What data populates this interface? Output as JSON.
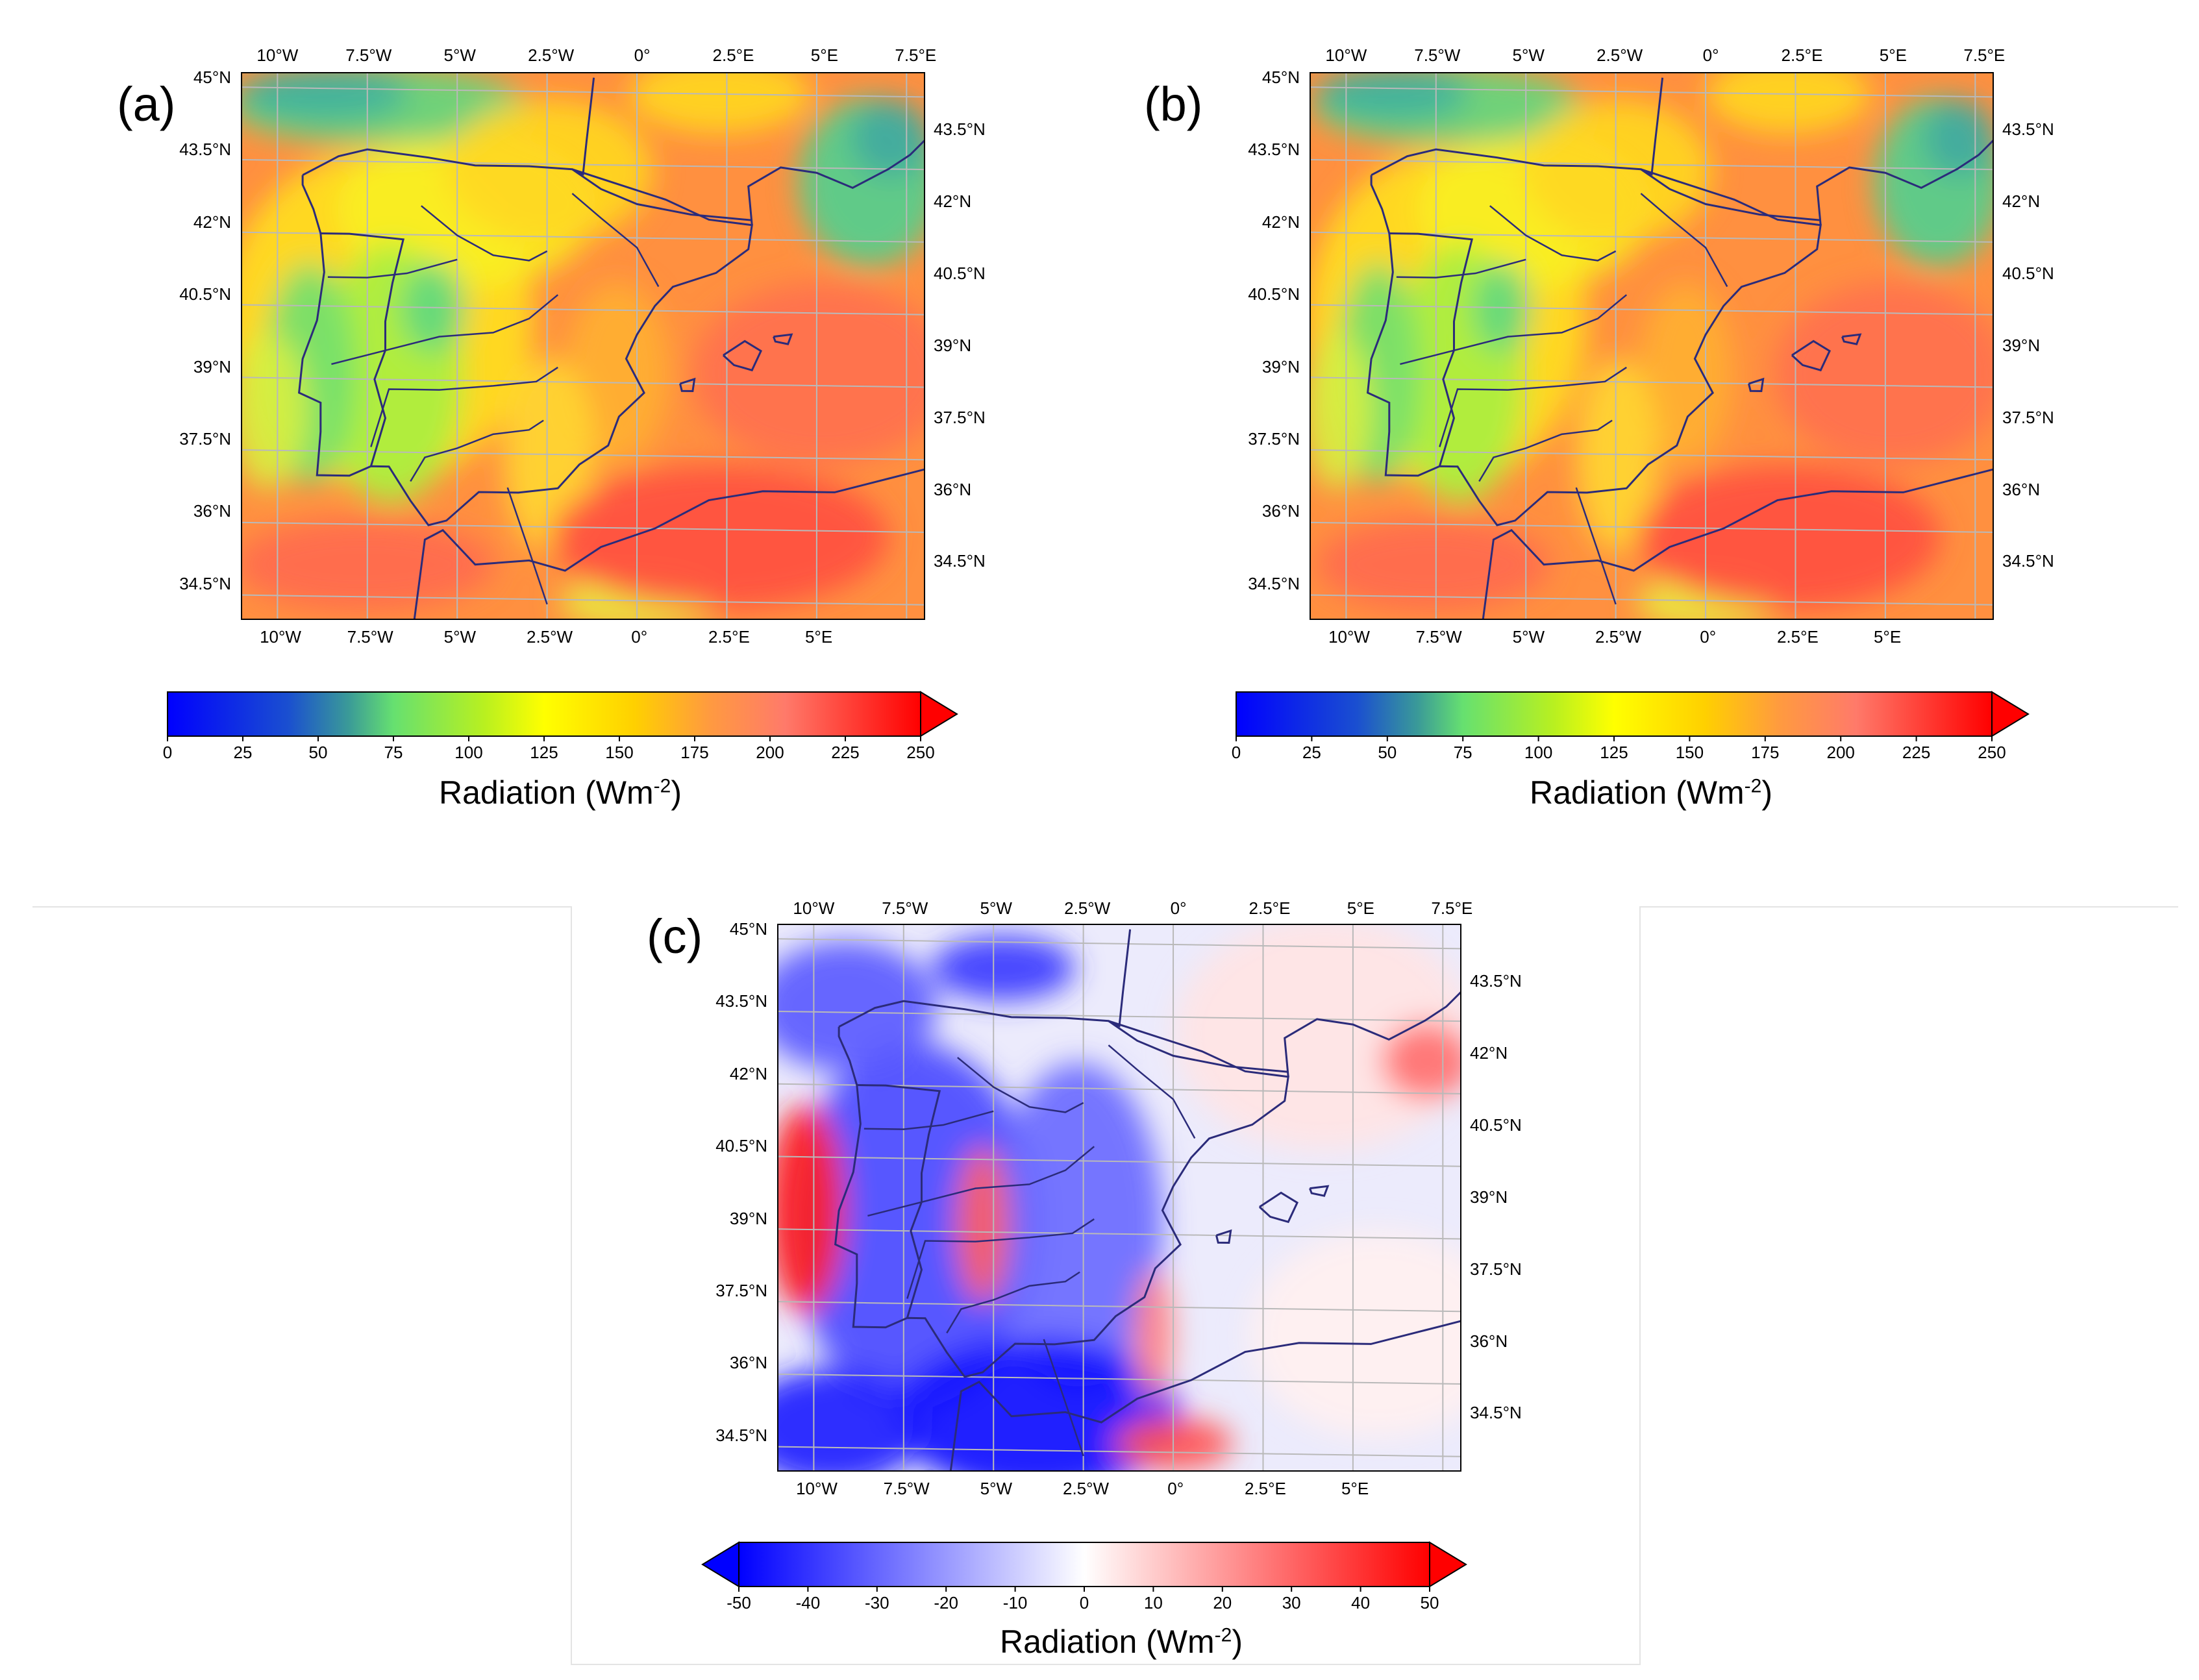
{
  "figure": {
    "panels": [
      {
        "id": "a",
        "label": "(a)",
        "top_lon": [
          "10°W",
          "7.5°W",
          "5°W",
          "2.5°W",
          "0°",
          "2.5°E",
          "5°E",
          "7.5°E"
        ],
        "bottom_lon": [
          "10°W",
          "7.5°W",
          "5°W",
          "2.5°W",
          "0°",
          "2.5°E",
          "5°E"
        ],
        "left_lat": [
          "45°N",
          "43.5°N",
          "42°N",
          "40.5°N",
          "39°N",
          "37.5°N",
          "36°N",
          "34.5°N"
        ],
        "right_lat": [
          "43.5°N",
          "42°N",
          "40.5°N",
          "39°N",
          "37.5°N",
          "36°N",
          "34.5°N"
        ],
        "colormap": "jet-like",
        "colorbar": {
          "title": "Radiation (Wm",
          "title_sup": "-2",
          "title_close": ")",
          "ticks": [
            "0",
            "25",
            "50",
            "75",
            "100",
            "125",
            "150",
            "175",
            "200",
            "225",
            "250"
          ],
          "range": [
            0,
            250
          ],
          "extend": "max"
        }
      },
      {
        "id": "b",
        "label": "(b)",
        "top_lon": [
          "10°W",
          "7.5°W",
          "5°W",
          "2.5°W",
          "0°",
          "2.5°E",
          "5°E",
          "7.5°E"
        ],
        "bottom_lon": [
          "10°W",
          "7.5°W",
          "5°W",
          "2.5°W",
          "0°",
          "2.5°E",
          "5°E"
        ],
        "left_lat": [
          "45°N",
          "43.5°N",
          "42°N",
          "40.5°N",
          "39°N",
          "37.5°N",
          "36°N",
          "34.5°N"
        ],
        "right_lat": [
          "43.5°N",
          "42°N",
          "40.5°N",
          "39°N",
          "37.5°N",
          "36°N",
          "34.5°N"
        ],
        "colormap": "jet-like",
        "colorbar": {
          "title": "Radiation (Wm",
          "title_sup": "-2",
          "title_close": ")",
          "ticks": [
            "0",
            "25",
            "50",
            "75",
            "100",
            "125",
            "150",
            "175",
            "200",
            "225",
            "250"
          ],
          "range": [
            0,
            250
          ],
          "extend": "max"
        }
      },
      {
        "id": "c",
        "label": "(c)",
        "top_lon": [
          "10°W",
          "7.5°W",
          "5°W",
          "2.5°W",
          "0°",
          "2.5°E",
          "5°E",
          "7.5°E"
        ],
        "bottom_lon": [
          "10°W",
          "7.5°W",
          "5°W",
          "2.5°W",
          "0°",
          "2.5°E",
          "5°E"
        ],
        "left_lat": [
          "45°N",
          "43.5°N",
          "42°N",
          "40.5°N",
          "39°N",
          "37.5°N",
          "36°N",
          "34.5°N"
        ],
        "right_lat": [
          "43.5°N",
          "42°N",
          "40.5°N",
          "39°N",
          "37.5°N",
          "36°N",
          "34.5°N"
        ],
        "colormap": "bwr",
        "colorbar": {
          "title": "Radiation (Wm",
          "title_sup": "-2",
          "title_close": ")",
          "ticks": [
            "-50",
            "-40",
            "-30",
            "-20",
            "-10",
            "0",
            "10",
            "20",
            "30",
            "40",
            "50"
          ],
          "range": [
            -50,
            50
          ],
          "extend": "both"
        }
      }
    ],
    "colors": {
      "coastline": "#2b2b7a",
      "graticule": "#b9b9b9",
      "jet_low": "#0000ff",
      "jet_mid": "#ffff00",
      "jet_high": "#ff0000",
      "bwr_low": "#0000ff",
      "bwr_mid": "#ffffff",
      "bwr_high": "#ff0000"
    }
  }
}
